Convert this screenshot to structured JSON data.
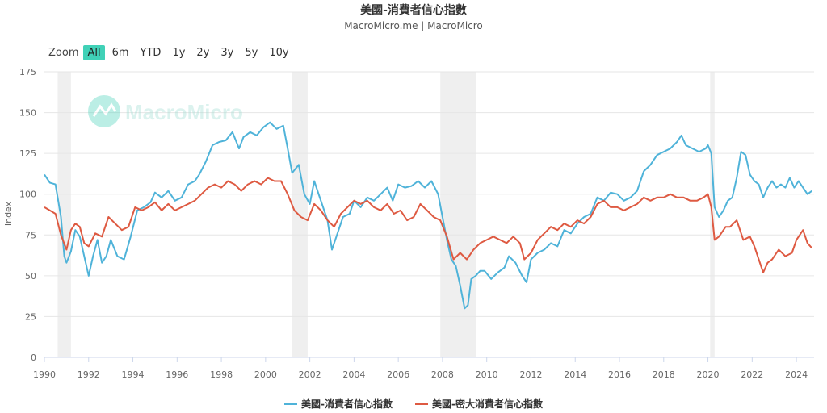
{
  "header": {
    "title": "美國-消費者信心指數",
    "subtitle": "MacroMicro.me | MacroMicro"
  },
  "zoom": {
    "label": "Zoom",
    "buttons": [
      "All",
      "6m",
      "YTD",
      "1y",
      "2y",
      "3y",
      "5y",
      "10y"
    ],
    "active": "All"
  },
  "watermark": {
    "text": "MacroMicro"
  },
  "colors": {
    "series1": "#4fb3d9",
    "series2": "#de5a42",
    "recession": "#efefef",
    "grid": "#e6e6e6",
    "accent": "#40d1b7"
  },
  "chart_data": {
    "type": "line",
    "ylabel": "Index",
    "ylim": [
      0,
      175
    ],
    "yticks": [
      0,
      25,
      50,
      75,
      100,
      125,
      150,
      175
    ],
    "xlim": [
      1990,
      2024.8
    ],
    "xticks": [
      "1990",
      "1992",
      "1994",
      "1996",
      "1998",
      "2000",
      "2002",
      "2004",
      "2006",
      "2008",
      "2010",
      "2012",
      "2014",
      "2016",
      "2018",
      "2020",
      "2022",
      "2024"
    ],
    "grid": true,
    "legend_position": "bottom",
    "recessions": [
      [
        1990.6,
        1991.2
      ],
      [
        2001.2,
        2001.9
      ],
      [
        2007.9,
        2009.5
      ],
      [
        2020.1,
        2020.3
      ]
    ],
    "series": [
      {
        "name": "美國-消費者信心指數",
        "x": [
          1990.0,
          1990.25,
          1990.5,
          1990.75,
          1990.9,
          1991.0,
          1991.2,
          1991.4,
          1991.6,
          1991.8,
          1992.0,
          1992.2,
          1992.4,
          1992.6,
          1992.8,
          1993.0,
          1993.3,
          1993.6,
          1993.9,
          1994.2,
          1994.5,
          1994.8,
          1995.0,
          1995.3,
          1995.6,
          1995.9,
          1996.2,
          1996.5,
          1996.8,
          1997.0,
          1997.3,
          1997.6,
          1997.9,
          1998.2,
          1998.5,
          1998.8,
          1999.0,
          1999.3,
          1999.6,
          1999.9,
          2000.2,
          2000.5,
          2000.8,
          2001.0,
          2001.2,
          2001.5,
          2001.75,
          2002.0,
          2002.2,
          2002.5,
          2002.8,
          2003.0,
          2003.2,
          2003.5,
          2003.8,
          2004.0,
          2004.3,
          2004.6,
          2004.9,
          2005.2,
          2005.5,
          2005.75,
          2006.0,
          2006.3,
          2006.6,
          2006.9,
          2007.2,
          2007.5,
          2007.8,
          2008.0,
          2008.2,
          2008.4,
          2008.6,
          2008.8,
          2009.0,
          2009.15,
          2009.3,
          2009.5,
          2009.7,
          2009.9,
          2010.2,
          2010.5,
          2010.8,
          2011.0,
          2011.3,
          2011.6,
          2011.8,
          2012.0,
          2012.3,
          2012.6,
          2012.9,
          2013.2,
          2013.5,
          2013.8,
          2014.1,
          2014.4,
          2014.7,
          2015.0,
          2015.3,
          2015.6,
          2015.9,
          2016.2,
          2016.5,
          2016.8,
          2017.1,
          2017.4,
          2017.7,
          2018.0,
          2018.3,
          2018.6,
          2018.8,
          2019.0,
          2019.3,
          2019.6,
          2019.9,
          2020.0,
          2020.15,
          2020.3,
          2020.5,
          2020.7,
          2020.9,
          2021.1,
          2021.3,
          2021.5,
          2021.7,
          2021.9,
          2022.1,
          2022.3,
          2022.5,
          2022.7,
          2022.9,
          2023.1,
          2023.3,
          2023.5,
          2023.7,
          2023.9,
          2024.1,
          2024.3,
          2024.5,
          2024.7
        ],
        "values": [
          112,
          107,
          106,
          86,
          62,
          58,
          65,
          78,
          74,
          62,
          50,
          62,
          72,
          58,
          62,
          72,
          62,
          60,
          74,
          90,
          92,
          95,
          101,
          98,
          102,
          96,
          98,
          106,
          108,
          112,
          120,
          130,
          132,
          133,
          138,
          128,
          135,
          138,
          136,
          141,
          144,
          140,
          142,
          128,
          113,
          118,
          100,
          94,
          108,
          96,
          84,
          66,
          74,
          86,
          88,
          96,
          92,
          98,
          96,
          100,
          104,
          96,
          106,
          104,
          105,
          108,
          104,
          108,
          100,
          86,
          72,
          60,
          56,
          44,
          30,
          32,
          48,
          50,
          53,
          53,
          48,
          52,
          55,
          62,
          58,
          50,
          46,
          60,
          64,
          66,
          70,
          68,
          78,
          76,
          82,
          86,
          88,
          98,
          96,
          101,
          100,
          96,
          98,
          102,
          114,
          118,
          124,
          126,
          128,
          132,
          136,
          130,
          128,
          126,
          128,
          130,
          125,
          92,
          86,
          90,
          96,
          98,
          110,
          126,
          124,
          112,
          108,
          106,
          98,
          104,
          108,
          104,
          106,
          104,
          110,
          104,
          108,
          104,
          100,
          102
        ]
      },
      {
        "name": "美國-密大消費者信心指數",
        "x": [
          1990.0,
          1990.25,
          1990.5,
          1990.75,
          1991.0,
          1991.2,
          1991.4,
          1991.6,
          1991.8,
          1992.0,
          1992.3,
          1992.6,
          1992.9,
          1993.2,
          1993.5,
          1993.8,
          1994.1,
          1994.4,
          1994.7,
          1995.0,
          1995.3,
          1995.6,
          1995.9,
          1996.2,
          1996.5,
          1996.8,
          1997.1,
          1997.4,
          1997.7,
          1998.0,
          1998.3,
          1998.6,
          1998.9,
          1999.2,
          1999.5,
          1999.8,
          2000.1,
          2000.4,
          2000.7,
          2001.0,
          2001.3,
          2001.6,
          2001.9,
          2002.2,
          2002.5,
          2002.8,
          2003.1,
          2003.4,
          2003.7,
          2004.0,
          2004.3,
          2004.6,
          2004.9,
          2005.2,
          2005.5,
          2005.8,
          2006.1,
          2006.4,
          2006.7,
          2007.0,
          2007.3,
          2007.6,
          2007.9,
          2008.2,
          2008.5,
          2008.8,
          2009.1,
          2009.4,
          2009.7,
          2010.0,
          2010.3,
          2010.6,
          2010.9,
          2011.2,
          2011.5,
          2011.7,
          2012.0,
          2012.3,
          2012.6,
          2012.9,
          2013.2,
          2013.5,
          2013.8,
          2014.1,
          2014.4,
          2014.7,
          2015.0,
          2015.3,
          2015.6,
          2015.9,
          2016.2,
          2016.5,
          2016.8,
          2017.1,
          2017.4,
          2017.7,
          2018.0,
          2018.3,
          2018.6,
          2018.9,
          2019.2,
          2019.5,
          2019.8,
          2020.0,
          2020.15,
          2020.3,
          2020.5,
          2020.8,
          2021.0,
          2021.3,
          2021.6,
          2021.9,
          2022.1,
          2022.3,
          2022.5,
          2022.7,
          2022.9,
          2023.2,
          2023.5,
          2023.8,
          2024.0,
          2024.3,
          2024.5,
          2024.7
        ],
        "values": [
          92,
          90,
          88,
          75,
          66,
          78,
          82,
          80,
          70,
          68,
          76,
          74,
          86,
          82,
          78,
          80,
          92,
          90,
          92,
          95,
          90,
          94,
          90,
          92,
          94,
          96,
          100,
          104,
          106,
          104,
          108,
          106,
          102,
          106,
          108,
          106,
          110,
          108,
          108,
          100,
          90,
          86,
          84,
          94,
          90,
          84,
          80,
          88,
          92,
          96,
          94,
          96,
          92,
          90,
          94,
          88,
          90,
          84,
          86,
          94,
          90,
          86,
          84,
          74,
          60,
          64,
          60,
          66,
          70,
          72,
          74,
          72,
          70,
          74,
          70,
          60,
          64,
          72,
          76,
          80,
          78,
          82,
          80,
          84,
          82,
          86,
          94,
          96,
          92,
          92,
          90,
          92,
          94,
          98,
          96,
          98,
          98,
          100,
          98,
          98,
          96,
          96,
          98,
          100,
          92,
          72,
          74,
          80,
          80,
          84,
          72,
          74,
          68,
          60,
          52,
          58,
          60,
          66,
          62,
          64,
          72,
          78,
          70,
          67
        ]
      }
    ]
  }
}
